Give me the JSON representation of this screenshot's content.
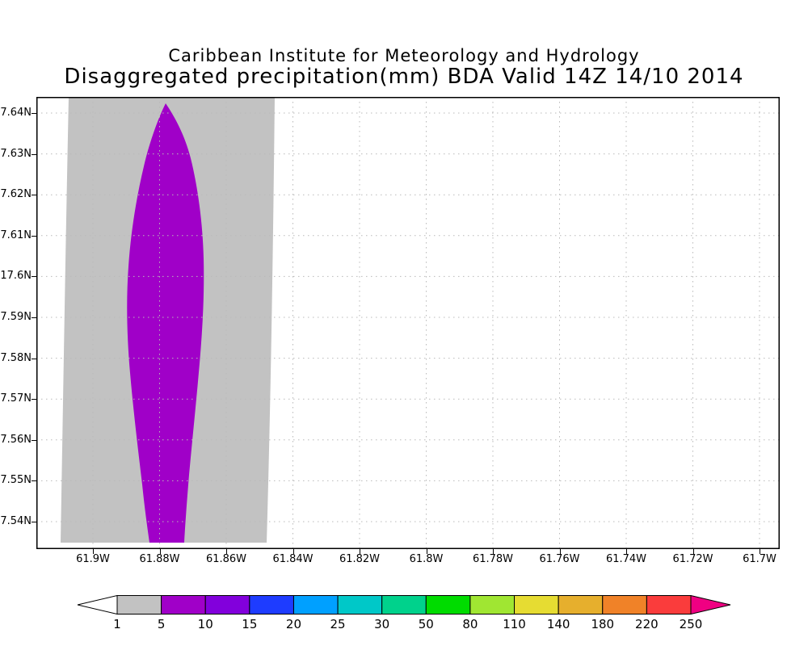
{
  "header": {
    "institution": "Caribbean Institute for Meteorology and Hydrology",
    "title": "Disaggregated precipitation(mm) BDA Valid 14Z 14/10 2014"
  },
  "chart_data": {
    "type": "heatmap",
    "title": "Caribbean Institute for Meteorology and Hydrology",
    "subtitle": "Disaggregated precipitation(mm) BDA Valid 14Z 14/10 2014",
    "variable": "Disaggregated precipitation (mm)",
    "valid_time": "14Z 14/10 2014",
    "grid": "dotted",
    "legend_position": "bottom colorbar",
    "x_axis": {
      "ticks": [
        "61.9W",
        "61.88W",
        "61.86W",
        "61.84W",
        "61.82W",
        "61.8W",
        "61.78W",
        "61.76W",
        "61.74W",
        "61.72W",
        "61.7W"
      ]
    },
    "y_axis": {
      "ticks": [
        "7.64N",
        "7.63N",
        "7.62N",
        "7.61N",
        "17.6N",
        "7.59N",
        "7.58N",
        "7.57N",
        "7.56N",
        "7.55N",
        "7.54N"
      ]
    },
    "colorbar": {
      "levels": [
        "1",
        "5",
        "10",
        "15",
        "20",
        "25",
        "30",
        "50",
        "80",
        "110",
        "140",
        "180",
        "220",
        "250"
      ],
      "colors": [
        "#ffffff",
        "#c2c2c2",
        "#a000c8",
        "#8200dc",
        "#1e3cff",
        "#00a0ff",
        "#00c8c8",
        "#00d28c",
        "#00dc00",
        "#a0e632",
        "#e6dc32",
        "#e6af2d",
        "#f08228",
        "#fa3c3c",
        "#f00082"
      ]
    },
    "regions": [
      {
        "range": "1-5 mm",
        "color": "#c2c2c2",
        "desc": "broad shaded band from about 61.905W to 61.856W spanning nearly the full latitude range 7.535N-7.645N"
      },
      {
        "range": "5-10 mm",
        "color": "#a000c8",
        "desc": "elongated precipitation core centered near 61.88W; pointed tip at 7.64N, widest near 7.60-7.61N, tapering toward 7.535N"
      }
    ]
  }
}
